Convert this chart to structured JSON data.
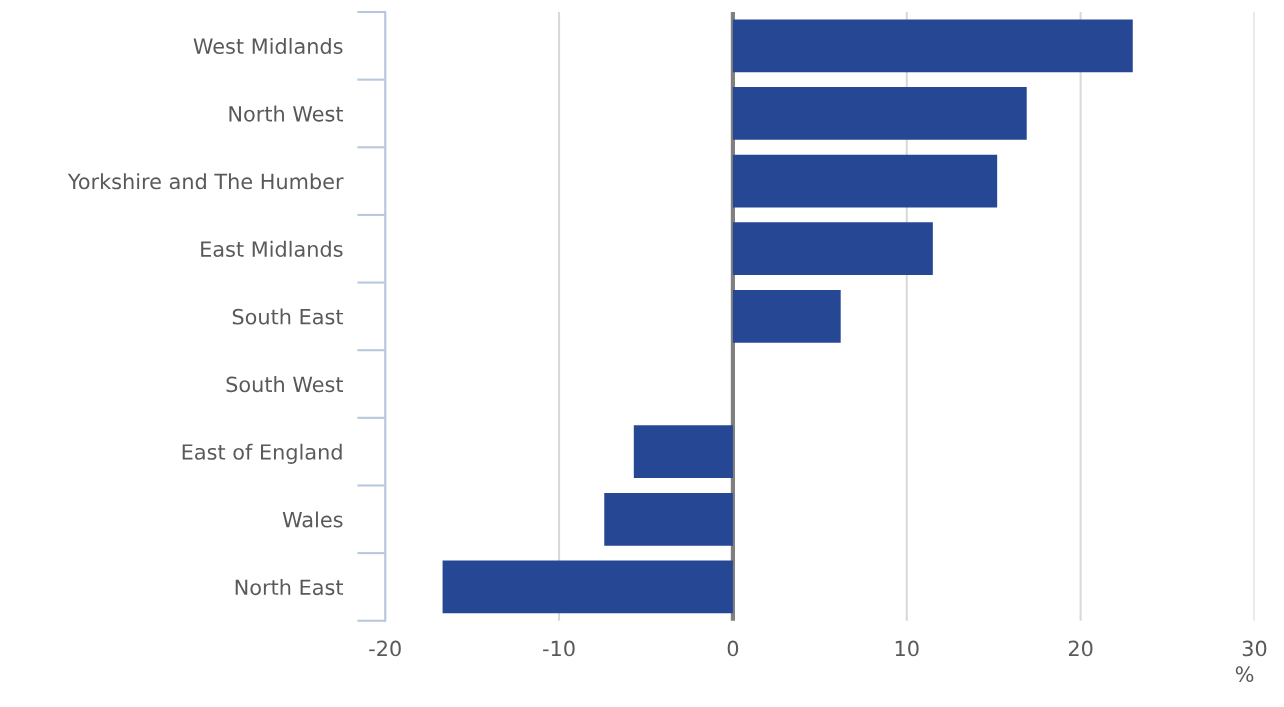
{
  "chart_data": {
    "type": "bar",
    "orientation": "horizontal",
    "categories": [
      "West Midlands",
      "North West",
      "Yorkshire and The Humber",
      "East Midlands",
      "South East",
      "South West",
      "East of England",
      "Wales",
      "North East"
    ],
    "values": [
      23.0,
      16.9,
      15.2,
      11.5,
      6.2,
      0,
      -5.7,
      -7.4,
      -16.7
    ],
    "color": "#264794",
    "xlim": [
      -20,
      30
    ],
    "xticks": [
      -20,
      -10,
      0,
      10,
      20,
      30
    ],
    "xlabel": "%",
    "grid": "x",
    "legend": false,
    "ref_lines": [
      {
        "axis": "x",
        "value": 0,
        "color": "#808080"
      }
    ]
  }
}
